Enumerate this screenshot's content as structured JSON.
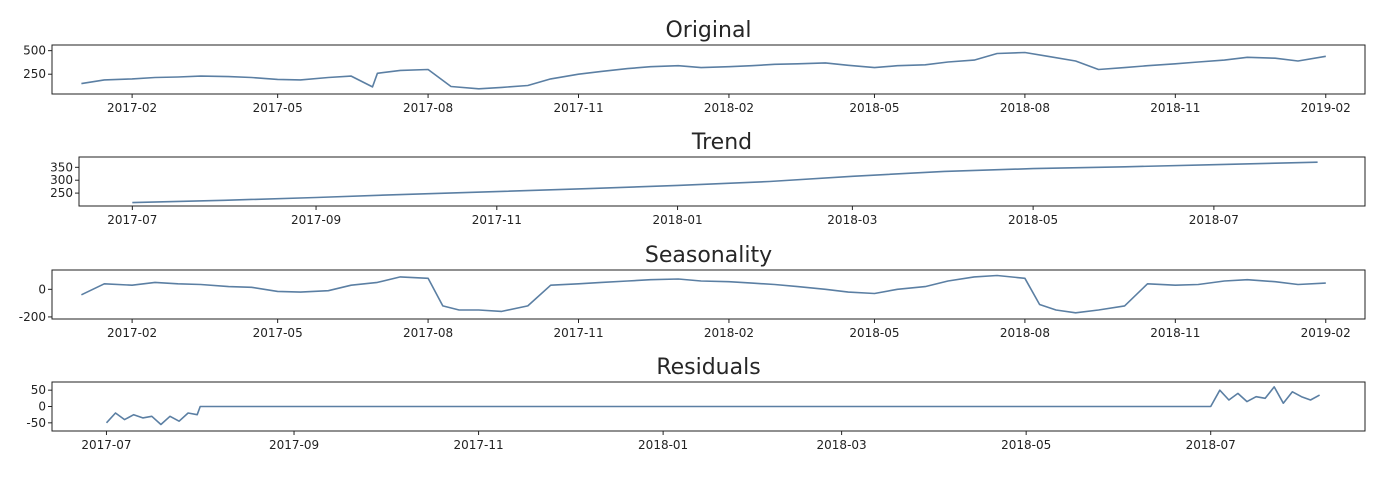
{
  "colors": {
    "series": "#5b7fa3",
    "axis": "#222222",
    "background": "#ffffff"
  },
  "chart_data": [
    {
      "type": "line",
      "title": "Original",
      "xlabel": "",
      "ylabel": "",
      "x_ticks": [
        "2017-02",
        "2017-05",
        "2017-08",
        "2017-11",
        "2018-02",
        "2018-05",
        "2018-08",
        "2018-11",
        "2019-02"
      ],
      "xlim": [
        "2016-12-14",
        "2019-02-25"
      ],
      "y_ticks": [
        250,
        500
      ],
      "ylim": [
        40,
        560
      ],
      "grid": false,
      "series": [
        {
          "x": [
            "2017-01-01",
            "2017-01-15",
            "2017-02-01",
            "2017-02-15",
            "2017-03-01",
            "2017-03-15",
            "2017-04-01",
            "2017-04-15",
            "2017-05-01",
            "2017-05-15",
            "2017-06-01",
            "2017-06-15",
            "2017-06-28",
            "2017-07-01",
            "2017-07-15",
            "2017-08-01",
            "2017-08-15",
            "2017-09-01",
            "2017-09-15",
            "2017-10-01",
            "2017-10-15",
            "2017-11-01",
            "2017-11-15",
            "2017-12-01",
            "2017-12-15",
            "2018-01-01",
            "2018-01-15",
            "2018-02-01",
            "2018-02-15",
            "2018-03-01",
            "2018-03-15",
            "2018-04-01",
            "2018-04-15",
            "2018-05-01",
            "2018-05-15",
            "2018-06-01",
            "2018-06-15",
            "2018-07-01",
            "2018-07-15",
            "2018-08-01",
            "2018-08-15",
            "2018-09-01",
            "2018-09-15",
            "2018-10-01",
            "2018-10-15",
            "2018-11-01",
            "2018-11-15",
            "2018-12-01",
            "2018-12-15",
            "2019-01-01",
            "2019-01-15",
            "2019-02-01"
          ],
          "y": [
            150,
            190,
            200,
            215,
            220,
            230,
            225,
            215,
            195,
            190,
            215,
            230,
            115,
            260,
            290,
            300,
            120,
            95,
            110,
            130,
            200,
            250,
            280,
            310,
            330,
            340,
            320,
            330,
            340,
            355,
            360,
            370,
            345,
            320,
            340,
            350,
            380,
            400,
            470,
            480,
            440,
            390,
            300,
            320,
            340,
            360,
            380,
            400,
            430,
            420,
            390,
            440
          ]
        }
      ]
    },
    {
      "type": "line",
      "title": "Trend",
      "xlabel": "",
      "ylabel": "",
      "x_ticks": [
        "2017-07",
        "2017-09",
        "2017-11",
        "2018-01",
        "2018-03",
        "2018-05",
        "2018-07"
      ],
      "xlim": [
        "2017-06-13",
        "2018-08-21"
      ],
      "y_ticks": [
        250,
        300,
        350
      ],
      "ylim": [
        200,
        390
      ],
      "grid": false,
      "series": [
        {
          "x": [
            "2017-07-01",
            "2017-08-01",
            "2017-09-01",
            "2017-10-01",
            "2017-11-01",
            "2017-12-01",
            "2018-01-01",
            "2018-02-01",
            "2018-03-01",
            "2018-04-01",
            "2018-05-01",
            "2018-06-01",
            "2018-07-01",
            "2018-08-05"
          ],
          "y": [
            213,
            222,
            233,
            245,
            256,
            267,
            280,
            295,
            315,
            334,
            345,
            352,
            360,
            370
          ]
        }
      ]
    },
    {
      "type": "line",
      "title": "Seasonality",
      "xlabel": "",
      "ylabel": "",
      "x_ticks": [
        "2017-02",
        "2017-05",
        "2017-08",
        "2017-11",
        "2018-02",
        "2018-05",
        "2018-08",
        "2018-11",
        "2019-02"
      ],
      "xlim": [
        "2016-12-14",
        "2019-02-25"
      ],
      "y_ticks": [
        -200,
        0
      ],
      "ylim": [
        -215,
        140
      ],
      "grid": false,
      "series": [
        {
          "x": [
            "2017-01-01",
            "2017-01-15",
            "2017-02-01",
            "2017-02-15",
            "2017-03-01",
            "2017-03-15",
            "2017-04-01",
            "2017-04-15",
            "2017-05-01",
            "2017-05-15",
            "2017-06-01",
            "2017-06-15",
            "2017-07-01",
            "2017-07-15",
            "2017-08-01",
            "2017-08-10",
            "2017-08-20",
            "2017-09-01",
            "2017-09-15",
            "2017-10-01",
            "2017-10-15",
            "2017-11-01",
            "2017-11-15",
            "2017-12-01",
            "2017-12-15",
            "2018-01-01",
            "2018-01-15",
            "2018-02-01",
            "2018-02-15",
            "2018-03-01",
            "2018-03-15",
            "2018-04-01",
            "2018-04-15",
            "2018-05-01",
            "2018-05-15",
            "2018-06-01",
            "2018-06-15",
            "2018-07-01",
            "2018-07-15",
            "2018-08-01",
            "2018-08-10",
            "2018-08-20",
            "2018-09-01",
            "2018-09-15",
            "2018-10-01",
            "2018-10-15",
            "2018-11-01",
            "2018-11-15",
            "2018-12-01",
            "2018-12-15",
            "2019-01-01",
            "2019-01-15",
            "2019-02-01"
          ],
          "y": [
            -40,
            40,
            30,
            50,
            40,
            35,
            20,
            15,
            -15,
            -20,
            -10,
            30,
            50,
            90,
            80,
            -120,
            -150,
            -150,
            -160,
            -120,
            30,
            40,
            50,
            60,
            70,
            75,
            60,
            55,
            45,
            35,
            20,
            0,
            -20,
            -30,
            0,
            20,
            60,
            90,
            100,
            80,
            -110,
            -150,
            -170,
            -150,
            -120,
            40,
            30,
            35,
            60,
            70,
            55,
            35,
            45
          ]
        }
      ]
    },
    {
      "type": "line",
      "title": "Residuals",
      "xlabel": "",
      "ylabel": "",
      "x_ticks": [
        "2017-07",
        "2017-09",
        "2017-11",
        "2018-01",
        "2018-03",
        "2018-05",
        "2018-07"
      ],
      "xlim": [
        "2017-06-13",
        "2018-08-21"
      ],
      "y_ticks": [
        -50,
        0,
        50
      ],
      "ylim": [
        -75,
        75
      ],
      "grid": false,
      "series": [
        {
          "x": [
            "2017-07-01",
            "2017-07-04",
            "2017-07-07",
            "2017-07-10",
            "2017-07-13",
            "2017-07-16",
            "2017-07-19",
            "2017-07-22",
            "2017-07-25",
            "2017-07-28",
            "2017-07-31",
            "2017-08-01",
            "2018-07-01",
            "2018-07-04",
            "2018-07-07",
            "2018-07-10",
            "2018-07-13",
            "2018-07-16",
            "2018-07-19",
            "2018-07-22",
            "2018-07-25",
            "2018-07-28",
            "2018-07-31",
            "2018-08-03",
            "2018-08-06"
          ],
          "y": [
            -50,
            -20,
            -40,
            -25,
            -35,
            -30,
            -55,
            -30,
            -45,
            -20,
            -25,
            0,
            0,
            50,
            20,
            40,
            15,
            30,
            25,
            60,
            10,
            45,
            30,
            20,
            35
          ]
        }
      ]
    }
  ]
}
